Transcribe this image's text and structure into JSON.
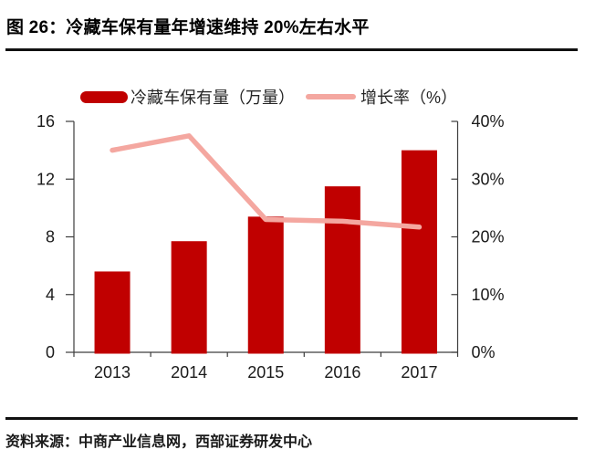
{
  "header": {
    "title": "图 26：冷藏车保有量年增速维持 20%左右水平"
  },
  "footer": {
    "source": "资料来源：中商产业信息网，西部证券研发中心"
  },
  "colors": {
    "bar": "#c00000",
    "line": "#f4a7a0",
    "axis": "#3d3d3d",
    "tick_text": "#1a1a1a"
  },
  "chart_data": {
    "type": "bar",
    "subtype": "bar+line combo, dual axis",
    "title": "冷藏车保有量年增速维持 20%左右水平",
    "categories": [
      "2013",
      "2014",
      "2015",
      "2016",
      "2017"
    ],
    "series": [
      {
        "name": "冷藏车保有量（万量）",
        "type": "bar",
        "axis": "left",
        "color": "#c00000",
        "values": [
          5.6,
          7.7,
          9.4,
          11.5,
          14.0
        ]
      },
      {
        "name": "增长率（%）",
        "type": "line",
        "axis": "right",
        "color": "#f4a7a0",
        "values": [
          35,
          37.5,
          23,
          22.7,
          21.7
        ]
      }
    ],
    "left_axis": {
      "min": 0,
      "max": 16,
      "tick_values": [
        0,
        4,
        8,
        12,
        16
      ],
      "tick_labels": [
        "0",
        "4",
        "8",
        "12",
        "16"
      ]
    },
    "right_axis": {
      "min": 0,
      "max": 40,
      "tick_values": [
        0,
        10,
        20,
        30,
        40
      ],
      "tick_labels": [
        "0%",
        "10%",
        "20%",
        "30%",
        "40%"
      ]
    },
    "grid": false,
    "legend_position": "top"
  }
}
